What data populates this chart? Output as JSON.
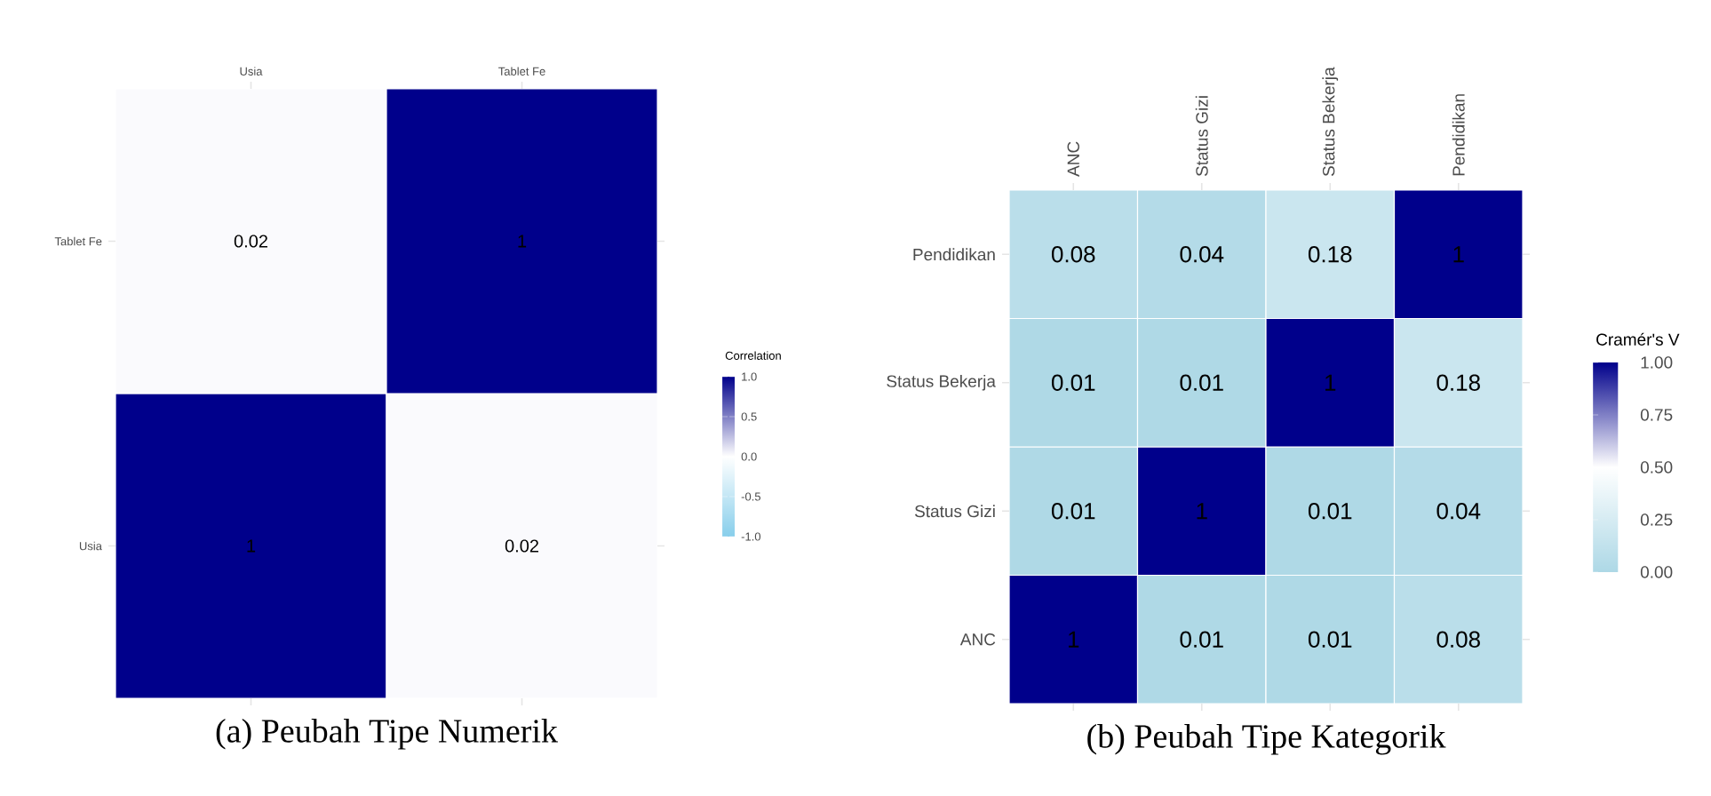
{
  "chart_data": [
    {
      "type": "heatmap",
      "title": "(a)  Peubah Tipe Numerik",
      "categories": [
        "Usia",
        "Tablet Fe"
      ],
      "y_categories": [
        "Tablet Fe",
        "Usia"
      ],
      "cells": [
        [
          0.02,
          1
        ],
        [
          1,
          0.02
        ]
      ],
      "data_labels": true,
      "clabel": "Correlation",
      "clim": [
        -1,
        1
      ],
      "cticks": [
        {
          "value": -1,
          "label": "-1.0"
        },
        {
          "value": -0.5,
          "label": "-0.5"
        },
        {
          "value": 0,
          "label": "0.0"
        },
        {
          "value": 0.5,
          "label": "0.5"
        },
        {
          "value": 1,
          "label": "1.0"
        }
      ]
    },
    {
      "type": "heatmap",
      "title": "(b) Peubah Tipe Kategorik",
      "categories": [
        "ANC",
        "Status Gizi",
        "Status Bekerja",
        "Pendidikan"
      ],
      "y_categories": [
        "Pendidikan",
        "Status Bekerja",
        "Status Gizi",
        "ANC"
      ],
      "cells": [
        [
          0.08,
          0.04,
          0.18,
          1
        ],
        [
          0.01,
          0.01,
          1,
          0.18
        ],
        [
          0.01,
          1,
          0.01,
          0.04
        ],
        [
          1,
          0.01,
          0.01,
          0.08
        ]
      ],
      "data_labels": true,
      "clabel": "Cramér's V",
      "clim": [
        0,
        1
      ],
      "cticks": [
        {
          "value": 0,
          "label": "0.00"
        },
        {
          "value": 0.25,
          "label": "0.25"
        },
        {
          "value": 0.5,
          "label": "0.50"
        },
        {
          "value": 0.75,
          "label": "0.75"
        },
        {
          "value": 1,
          "label": "1.00"
        }
      ]
    }
  ]
}
